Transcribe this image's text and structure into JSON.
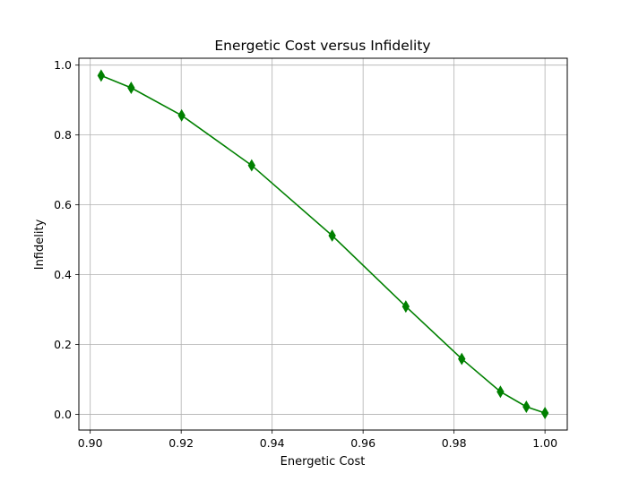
{
  "chart_data": {
    "type": "line",
    "title": "Energetic Cost versus Infidelity",
    "xlabel": "Energetic Cost",
    "ylabel": "Infidelity",
    "xlim": [
      0.8975,
      1.0049
    ],
    "ylim": [
      -0.0447,
      1.0197
    ],
    "xticks": [
      0.9,
      0.92,
      0.94,
      0.96,
      0.98,
      1.0
    ],
    "xtick_labels": [
      "0.90",
      "0.92",
      "0.94",
      "0.96",
      "0.98",
      "1.00"
    ],
    "yticks": [
      0.0,
      0.2,
      0.4,
      0.6,
      0.8,
      1.0
    ],
    "ytick_labels": [
      "0.0",
      "0.2",
      "0.4",
      "0.6",
      "0.8",
      "1.0"
    ],
    "grid": true,
    "series": [
      {
        "color": "#008000",
        "marker": "thin-diamond",
        "x": [
          0.9024,
          0.909,
          0.9201,
          0.9355,
          0.9532,
          0.9694,
          0.9817,
          0.9902,
          0.9959,
          1.0
        ],
        "y": [
          0.97,
          0.935,
          0.856,
          0.713,
          0.512,
          0.309,
          0.159,
          0.065,
          0.022,
          0.004
        ]
      }
    ]
  }
}
